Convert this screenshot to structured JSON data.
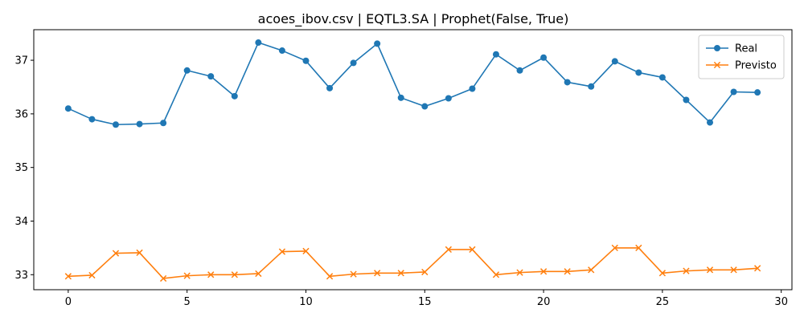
{
  "chart_data": {
    "type": "line",
    "title": "acoes_ibov.csv | EQTL3.SA | Prophet(False, True)",
    "xlabel": "",
    "ylabel": "",
    "xlim": [
      -1.45,
      30.45
    ],
    "ylim": [
      32.72,
      37.57
    ],
    "xticks": [
      0,
      5,
      10,
      15,
      20,
      25,
      30
    ],
    "yticks": [
      33,
      34,
      35,
      36,
      37
    ],
    "grid": false,
    "legend": "top-right",
    "x": [
      0,
      1,
      2,
      3,
      4,
      5,
      6,
      7,
      8,
      9,
      10,
      11,
      12,
      13,
      14,
      15,
      16,
      17,
      18,
      19,
      20,
      21,
      22,
      23,
      24,
      25,
      26,
      27,
      28,
      29
    ],
    "series": [
      {
        "name": "Real",
        "color": "#1f77b4",
        "marker": "circle",
        "values": [
          36.1,
          35.9,
          35.8,
          35.81,
          35.83,
          36.81,
          36.7,
          36.33,
          37.33,
          37.18,
          36.99,
          36.48,
          36.95,
          37.31,
          36.3,
          36.14,
          36.29,
          36.47,
          37.11,
          36.81,
          37.05,
          36.59,
          36.51,
          36.98,
          36.77,
          36.68,
          36.26,
          35.84,
          36.41,
          36.4
        ]
      },
      {
        "name": "Previsto",
        "color": "#ff7f0e",
        "marker": "x",
        "values": [
          32.97,
          32.99,
          33.4,
          33.41,
          32.93,
          32.98,
          33.0,
          33.0,
          33.02,
          33.43,
          33.44,
          32.97,
          33.01,
          33.03,
          33.03,
          33.05,
          33.47,
          33.47,
          33.0,
          33.04,
          33.06,
          33.06,
          33.09,
          33.5,
          33.5,
          33.03,
          33.07,
          33.09,
          33.09,
          33.12
        ]
      }
    ]
  }
}
